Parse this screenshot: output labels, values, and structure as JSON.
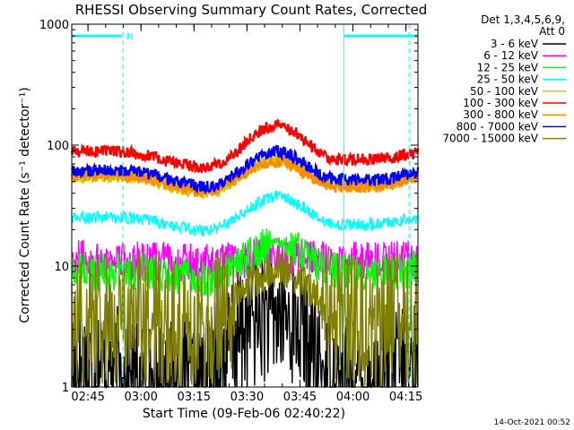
{
  "chart_data": {
    "type": "line",
    "title": "RHESSI Observing Summary Count Rates, Corrected",
    "xlabel": "Start Time (09-Feb-06 02:40:22)",
    "ylabel": "Corrected Count Rate (s⁻¹ detector⁻¹)",
    "yscale": "log",
    "ylim": [
      1,
      1000
    ],
    "xlim_minutes": [
      0,
      98
    ],
    "y_ticks": [
      "1",
      "10",
      "100",
      "1000"
    ],
    "x_ticks": [
      {
        "label": "02:45",
        "minute": 4.6
      },
      {
        "label": "03:00",
        "minute": 19.6
      },
      {
        "label": "03:15",
        "minute": 34.6
      },
      {
        "label": "03:30",
        "minute": 49.6
      },
      {
        "label": "03:45",
        "minute": 64.6
      },
      {
        "label": "04:00",
        "minute": 79.6
      },
      {
        "label": "04:15",
        "minute": 94.6
      }
    ],
    "legend_header": [
      "Det 1,3,4,5,6,9,",
      "Att 0"
    ],
    "series": [
      {
        "name": "3 - 6 keV",
        "color": "#000000",
        "minute": [
          0,
          10,
          20,
          30,
          36,
          40,
          45,
          48,
          50,
          55,
          58,
          62,
          65,
          68,
          70,
          75,
          80,
          85,
          90,
          98
        ],
        "values": [
          1.5,
          1.5,
          1,
          1,
          1,
          1.4,
          2.2,
          2.8,
          3.5,
          3.8,
          3.9,
          3.6,
          3,
          2,
          1.5,
          1,
          1,
          1,
          1.5,
          1.5
        ]
      },
      {
        "name": "6 - 12 keV",
        "color": "#ff00ff",
        "minute": [
          0,
          10,
          20,
          30,
          40,
          45,
          50,
          55,
          58,
          62,
          66,
          70,
          75,
          80,
          85,
          90,
          98
        ],
        "values": [
          11.5,
          11.5,
          11,
          10.8,
          10.5,
          11,
          11.5,
          12,
          12.5,
          12.2,
          11.8,
          11.3,
          11,
          11,
          11,
          11,
          11.5
        ]
      },
      {
        "name": "12 - 25 keV",
        "color": "#00ff00",
        "minute": [
          0,
          10,
          20,
          30,
          36,
          40,
          45,
          50,
          55,
          58,
          62,
          66,
          70,
          75,
          80,
          85,
          90,
          98
        ],
        "values": [
          9,
          9,
          9,
          8,
          8,
          8.2,
          9.5,
          12,
          14.5,
          15.5,
          14.5,
          12,
          10,
          9,
          9,
          9,
          9,
          9.5
        ]
      },
      {
        "name": "25 - 50 keV",
        "color": "#00ffff",
        "minute": [
          0,
          10,
          20,
          30,
          38,
          42,
          46,
          50,
          54,
          58,
          62,
          66,
          70,
          74,
          80,
          85,
          90,
          98
        ],
        "values": [
          25,
          25.5,
          24.5,
          21,
          19.5,
          21,
          25,
          30,
          35,
          38,
          35,
          30,
          25,
          22,
          22,
          22,
          23,
          25
        ]
      },
      {
        "name": "50 - 100 keV",
        "color": "#cccc00",
        "minute": [
          0,
          10,
          20,
          30,
          38,
          42,
          46,
          50,
          54,
          58,
          62,
          66,
          70,
          74,
          80,
          85,
          90,
          98
        ],
        "values": [
          54,
          55,
          54,
          44,
          40,
          43,
          51,
          61,
          71,
          76,
          71,
          61,
          52,
          47,
          47,
          47,
          48,
          54
        ]
      },
      {
        "name": "100 - 300 keV",
        "color": "#ff0000",
        "minute": [
          0,
          10,
          20,
          30,
          38,
          42,
          46,
          50,
          54,
          58,
          62,
          66,
          70,
          74,
          80,
          85,
          90,
          98
        ],
        "values": [
          88,
          90,
          84,
          70,
          65,
          70,
          84,
          110,
          135,
          148,
          135,
          110,
          88,
          76,
          76,
          76,
          78,
          88
        ]
      },
      {
        "name": "300 - 800 keV",
        "color": "#ff8c00",
        "minute": [
          0,
          10,
          20,
          30,
          38,
          42,
          46,
          50,
          54,
          58,
          62,
          66,
          70,
          74,
          80,
          85,
          90,
          98
        ],
        "values": [
          56,
          57,
          55,
          45,
          41,
          44,
          52,
          62,
          70,
          73,
          68,
          59,
          50,
          45,
          45,
          45,
          46,
          56
        ]
      },
      {
        "name": "800 - 7000 keV",
        "color": "#0000ff",
        "minute": [
          0,
          10,
          20,
          30,
          38,
          42,
          46,
          50,
          54,
          58,
          62,
          66,
          70,
          74,
          80,
          85,
          90,
          98
        ],
        "values": [
          60,
          62,
          60,
          49,
          45,
          48,
          57,
          70,
          83,
          90,
          83,
          70,
          58,
          52,
          52,
          52,
          53,
          60
        ]
      },
      {
        "name": "7000 - 15000 keV",
        "color": "#808000",
        "minute": [
          0,
          10,
          20,
          30,
          36,
          40,
          44,
          48,
          52,
          56,
          58,
          60,
          64,
          68,
          72,
          76,
          80,
          85,
          90,
          98
        ],
        "values": [
          3.5,
          3.6,
          3.8,
          3.4,
          3.1,
          3.3,
          4.2,
          5.8,
          7.8,
          9.4,
          9.8,
          9.4,
          7.8,
          6,
          4.6,
          3.8,
          3.5,
          3.4,
          3.4,
          3.5
        ]
      }
    ],
    "overlays": [
      {
        "type": "bar",
        "label": "",
        "color": "#00ffff",
        "value": 800,
        "minute": [
          0,
          14
        ]
      },
      {
        "type": "bar",
        "label": "",
        "color": "#00ffff",
        "value": 800,
        "minute": [
          77,
          98
        ]
      },
      {
        "type": "marker",
        "label": "N",
        "color": "#00ffff",
        "value": 800,
        "minute": 15
      },
      {
        "type": "vline",
        "style": "dashed",
        "color": "#00ffff",
        "minute": 14.5
      },
      {
        "type": "vline",
        "style": "solid",
        "color": "#00ffff",
        "minute": 77
      },
      {
        "type": "vline",
        "style": "dashed",
        "color": "#00ffff",
        "minute": 95.5
      }
    ],
    "grid": false,
    "legend_position": "right"
  },
  "footer": {
    "timestamp": "14-Oct-2021 00:52"
  }
}
